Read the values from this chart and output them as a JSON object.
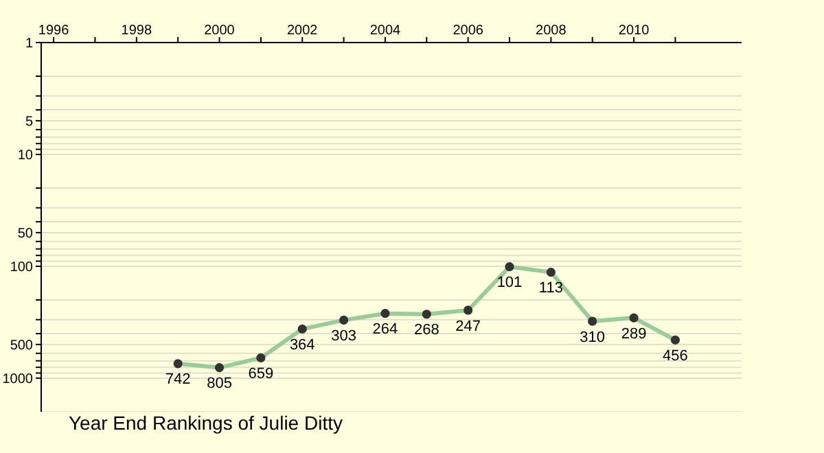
{
  "chart_data": {
    "type": "line",
    "title": "Year End Rankings of  Julie Ditty",
    "x": [
      1999,
      2000,
      2001,
      2002,
      2003,
      2004,
      2005,
      2006,
      2007,
      2008,
      2009,
      2010,
      2011
    ],
    "series": [
      {
        "color": "#99cc99",
        "values": [
          742,
          805,
          659,
          364,
          303,
          264,
          268,
          247,
          101,
          113,
          310,
          289,
          456
        ]
      }
    ],
    "xlim": [
      1995.7,
      2012.6
    ],
    "xticks": [
      1996,
      {
        "value": 1997,
        "label": null
      },
      1998,
      {
        "value": 1999,
        "label": null
      },
      2000,
      {
        "value": 2001,
        "label": null
      },
      2002,
      {
        "value": 2003,
        "label": null
      },
      2004,
      {
        "value": 2005,
        "label": null
      },
      2006,
      {
        "value": 2007,
        "label": null
      },
      2008,
      {
        "value": 2009,
        "label": null
      },
      2010,
      {
        "value": 2011,
        "label": null
      }
    ],
    "ylim": [
      2000,
      1
    ],
    "yticks": [
      1,
      {
        "value": 2,
        "label": null
      },
      {
        "value": 3,
        "label": null
      },
      {
        "value": 4,
        "label": null
      },
      5,
      {
        "value": 6,
        "label": null
      },
      {
        "value": 7,
        "label": null
      },
      {
        "value": 8,
        "label": null
      },
      {
        "value": 9,
        "label": null
      },
      10,
      {
        "value": 20,
        "label": null
      },
      {
        "value": 30,
        "label": null
      },
      {
        "value": 40,
        "label": null
      },
      50,
      {
        "value": 60,
        "label": null
      },
      {
        "value": 70,
        "label": null
      },
      {
        "value": 80,
        "label": null
      },
      {
        "value": 90,
        "label": null
      },
      100,
      {
        "value": 200,
        "label": null
      },
      {
        "value": 300,
        "label": null
      },
      {
        "value": 400,
        "label": null
      },
      500,
      {
        "value": 600,
        "label": null
      },
      {
        "value": 700,
        "label": null
      },
      {
        "value": 800,
        "label": null
      },
      {
        "value": 900,
        "label": null
      },
      1000
    ],
    "log": "y",
    "grid": "y",
    "marker": "circle",
    "line_style": "solid",
    "data_labels": true,
    "legend": false
  }
}
